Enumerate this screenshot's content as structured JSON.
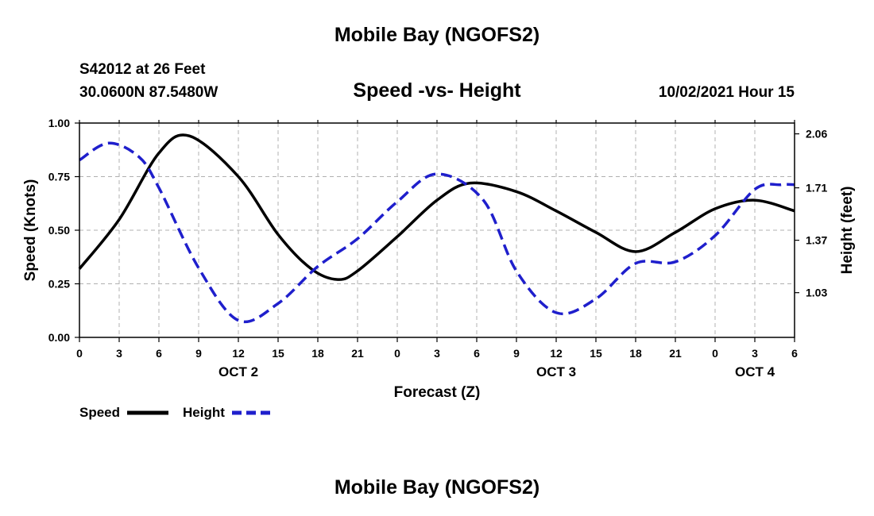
{
  "header": {
    "title": "Mobile Bay (NGOFS2)",
    "station": "S42012 at 26 Feet",
    "coords": "30.0600N  87.5480W",
    "datetime": "10/02/2021 Hour 15"
  },
  "footer": {
    "title": "Mobile Bay (NGOFS2)"
  },
  "colors": {
    "speed": "#000000",
    "height": "#1f1fcc",
    "grid": "#b0b0b0"
  },
  "chart_data": {
    "type": "line",
    "title": "Speed -vs- Height",
    "xlabel": "Forecast (Z)",
    "ylabel": "Speed (Knots)",
    "ylabel_right": "Height (feet)",
    "x_range_hours": [
      0,
      54
    ],
    "x_tick_labels": [
      "0",
      "3",
      "6",
      "9",
      "12",
      "15",
      "18",
      "21",
      "0",
      "3",
      "6",
      "9",
      "12",
      "15",
      "18",
      "21",
      "0",
      "3",
      "6"
    ],
    "day_labels": [
      {
        "label": "OCT 2",
        "hour": 12
      },
      {
        "label": "OCT 3",
        "hour": 36
      },
      {
        "label": "OCT 4",
        "hour": 51
      }
    ],
    "ylim": [
      0,
      1.0
    ],
    "y_ticks": [
      0.0,
      0.25,
      0.5,
      0.75,
      1.0
    ],
    "y_tick_labels": [
      "0.00",
      "0.25",
      "0.50",
      "0.75",
      "1.00"
    ],
    "ylim_right": [
      0.74,
      2.13
    ],
    "y_ticks_right": [
      1.03,
      1.37,
      1.71,
      2.06
    ],
    "y_tick_labels_right": [
      "1.03",
      "1.37",
      "1.71",
      "2.06"
    ],
    "grid": true,
    "legend_position": "bottom-left",
    "series": [
      {
        "name": "Speed",
        "axis": "left",
        "style": "solid",
        "x": [
          0,
          3,
          6,
          8.3,
          12,
          15,
          17.5,
          19.5,
          21,
          24,
          27,
          29.5,
          33,
          36,
          39,
          42,
          45,
          48,
          51,
          54
        ],
        "y": [
          0.32,
          0.55,
          0.86,
          0.94,
          0.75,
          0.48,
          0.32,
          0.27,
          0.31,
          0.47,
          0.64,
          0.72,
          0.68,
          0.59,
          0.49,
          0.4,
          0.49,
          0.6,
          0.64,
          0.59
        ]
      },
      {
        "name": "Height",
        "axis": "right",
        "style": "dashed",
        "x": [
          0,
          2.2,
          4.5,
          6,
          9,
          12,
          15,
          18,
          21,
          24,
          27,
          30.5,
          33,
          36,
          39,
          42,
          45,
          48,
          51,
          53,
          54
        ],
        "y": [
          1.89,
          2.0,
          1.91,
          1.71,
          1.19,
          0.85,
          0.96,
          1.2,
          1.38,
          1.62,
          1.8,
          1.63,
          1.17,
          0.9,
          0.99,
          1.22,
          1.23,
          1.4,
          1.7,
          1.73,
          1.73
        ]
      }
    ]
  }
}
